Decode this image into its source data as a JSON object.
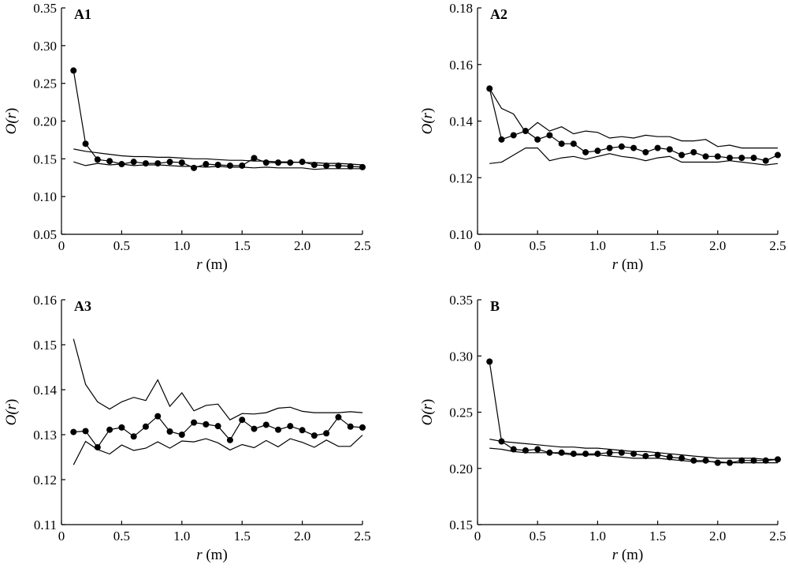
{
  "chart_data": [
    {
      "type": "line",
      "panel_label": "A1",
      "xlabel": {
        "italic": "r",
        "rest": " (m)"
      },
      "ylabel": {
        "pre": "O(",
        "italic": "r",
        "post": ")"
      },
      "xlim": [
        0,
        2.5
      ],
      "ylim": [
        0.05,
        0.35
      ],
      "xticks": [
        0,
        0.5,
        1.0,
        1.5,
        2.0,
        2.5
      ],
      "xtick_labels": [
        "0",
        "0.5",
        "1.0",
        "1.5",
        "2.0",
        "2.5"
      ],
      "yticks": [
        0.05,
        0.1,
        0.15,
        0.2,
        0.25,
        0.3,
        0.35
      ],
      "ytick_labels": [
        "0.05",
        "0.10",
        "0.15",
        "0.20",
        "0.25",
        "0.30",
        "0.35"
      ],
      "x": [
        0.1,
        0.2,
        0.3,
        0.4,
        0.5,
        0.6,
        0.7,
        0.8,
        0.9,
        1.0,
        1.1,
        1.2,
        1.3,
        1.4,
        1.5,
        1.6,
        1.7,
        1.8,
        1.9,
        2.0,
        2.1,
        2.2,
        2.3,
        2.4,
        2.5
      ],
      "series": [
        {
          "role": "observed",
          "values": [
            0.267,
            0.17,
            0.149,
            0.147,
            0.143,
            0.146,
            0.144,
            0.144,
            0.146,
            0.145,
            0.138,
            0.143,
            0.142,
            0.141,
            0.141,
            0.151,
            0.145,
            0.145,
            0.145,
            0.146,
            0.142,
            0.141,
            0.141,
            0.14,
            0.139
          ]
        },
        {
          "role": "envelope-upper",
          "values": [
            0.163,
            0.16,
            0.158,
            0.156,
            0.154,
            0.153,
            0.153,
            0.152,
            0.152,
            0.151,
            0.15,
            0.15,
            0.149,
            0.148,
            0.148,
            0.147,
            0.147,
            0.146,
            0.146,
            0.145,
            0.145,
            0.144,
            0.144,
            0.143,
            0.142
          ]
        },
        {
          "role": "envelope-lower",
          "values": [
            0.146,
            0.141,
            0.144,
            0.142,
            0.143,
            0.141,
            0.142,
            0.142,
            0.141,
            0.14,
            0.14,
            0.139,
            0.14,
            0.139,
            0.139,
            0.138,
            0.139,
            0.138,
            0.138,
            0.138,
            0.136,
            0.137,
            0.137,
            0.137,
            0.137
          ]
        }
      ]
    },
    {
      "type": "line",
      "panel_label": "A2",
      "xlabel": {
        "italic": "r",
        "rest": " (m)"
      },
      "ylabel": {
        "pre": "O(",
        "italic": "r",
        "post": ")"
      },
      "xlim": [
        0,
        2.5
      ],
      "ylim": [
        0.1,
        0.18
      ],
      "xticks": [
        0,
        0.5,
        1.0,
        1.5,
        2.0,
        2.5
      ],
      "xtick_labels": [
        "0",
        "0.5",
        "1.0",
        "1.5",
        "2.0",
        "2.5"
      ],
      "yticks": [
        0.1,
        0.12,
        0.14,
        0.16,
        0.18
      ],
      "ytick_labels": [
        "0.10",
        "0.12",
        "0.14",
        "0.16",
        "0.18"
      ],
      "x": [
        0.1,
        0.2,
        0.3,
        0.4,
        0.5,
        0.6,
        0.7,
        0.8,
        0.9,
        1.0,
        1.1,
        1.2,
        1.3,
        1.4,
        1.5,
        1.6,
        1.7,
        1.8,
        1.9,
        2.0,
        2.1,
        2.2,
        2.3,
        2.4,
        2.5
      ],
      "series": [
        {
          "role": "observed",
          "values": [
            0.1515,
            0.1335,
            0.135,
            0.1365,
            0.1335,
            0.135,
            0.132,
            0.132,
            0.129,
            0.1295,
            0.1305,
            0.131,
            0.1305,
            0.129,
            0.1305,
            0.13,
            0.128,
            0.129,
            0.1275,
            0.1275,
            0.127,
            0.127,
            0.127,
            0.126,
            0.128
          ]
        },
        {
          "role": "envelope-upper",
          "values": [
            0.1515,
            0.1445,
            0.1425,
            0.136,
            0.1395,
            0.1365,
            0.138,
            0.1355,
            0.1365,
            0.136,
            0.134,
            0.1345,
            0.134,
            0.135,
            0.1345,
            0.1345,
            0.133,
            0.133,
            0.1335,
            0.131,
            0.1315,
            0.1305,
            0.1305,
            0.1305,
            0.1305
          ]
        },
        {
          "role": "envelope-lower",
          "values": [
            0.125,
            0.1255,
            0.128,
            0.1305,
            0.1305,
            0.126,
            0.127,
            0.1275,
            0.1265,
            0.1275,
            0.1285,
            0.1275,
            0.127,
            0.126,
            0.127,
            0.1275,
            0.1255,
            0.1255,
            0.1255,
            0.1255,
            0.126,
            0.1255,
            0.125,
            0.1245,
            0.125
          ]
        }
      ]
    },
    {
      "type": "line",
      "panel_label": "A3",
      "xlabel": {
        "italic": "r",
        "rest": " (m)"
      },
      "ylabel": {
        "pre": "O(",
        "italic": "r",
        "post": ")"
      },
      "xlim": [
        0,
        2.5
      ],
      "ylim": [
        0.11,
        0.16
      ],
      "xticks": [
        0,
        0.5,
        1.0,
        1.5,
        2.0,
        2.5
      ],
      "xtick_labels": [
        "0",
        "0.5",
        "1.0",
        "1.5",
        "2.0",
        "2.5"
      ],
      "yticks": [
        0.11,
        0.12,
        0.13,
        0.14,
        0.15,
        0.16
      ],
      "ytick_labels": [
        "0.11",
        "0.12",
        "0.13",
        "0.14",
        "0.15",
        "0.16"
      ],
      "x": [
        0.1,
        0.2,
        0.3,
        0.4,
        0.5,
        0.6,
        0.7,
        0.8,
        0.9,
        1.0,
        1.1,
        1.2,
        1.3,
        1.4,
        1.5,
        1.6,
        1.7,
        1.8,
        1.9,
        2.0,
        2.1,
        2.2,
        2.3,
        2.4,
        2.5
      ],
      "series": [
        {
          "role": "observed",
          "values": [
            0.1306,
            0.1308,
            0.1272,
            0.1311,
            0.1316,
            0.1296,
            0.1318,
            0.1341,
            0.1307,
            0.13,
            0.1327,
            0.1323,
            0.1319,
            0.1288,
            0.1333,
            0.1313,
            0.1322,
            0.1311,
            0.1319,
            0.131,
            0.1298,
            0.1303,
            0.1339,
            0.1318,
            0.1316
          ]
        },
        {
          "role": "envelope-upper",
          "values": [
            0.1513,
            0.1412,
            0.1373,
            0.1357,
            0.1373,
            0.1383,
            0.1376,
            0.1422,
            0.1363,
            0.1393,
            0.1353,
            0.1365,
            0.1368,
            0.1333,
            0.1347,
            0.1346,
            0.1349,
            0.1359,
            0.1361,
            0.1352,
            0.1349,
            0.1349,
            0.1349,
            0.1351,
            0.1349
          ]
        },
        {
          "role": "envelope-lower",
          "values": [
            0.1233,
            0.1285,
            0.1267,
            0.1257,
            0.1277,
            0.1265,
            0.127,
            0.1284,
            0.127,
            0.1286,
            0.1284,
            0.1291,
            0.1282,
            0.1266,
            0.1278,
            0.1271,
            0.1287,
            0.1273,
            0.1291,
            0.1283,
            0.1272,
            0.1288,
            0.1274,
            0.1274,
            0.1299
          ]
        }
      ]
    },
    {
      "type": "line",
      "panel_label": "B",
      "xlabel": {
        "italic": "r",
        "rest": " (m)"
      },
      "ylabel": {
        "pre": "O(",
        "italic": "r",
        "post": ")"
      },
      "xlim": [
        0,
        2.5
      ],
      "ylim": [
        0.15,
        0.35
      ],
      "xticks": [
        0,
        0.5,
        1.0,
        1.5,
        2.0,
        2.5
      ],
      "xtick_labels": [
        "0",
        "0.5",
        "1.0",
        "1.5",
        "2.0",
        "2.5"
      ],
      "yticks": [
        0.15,
        0.2,
        0.25,
        0.3,
        0.35
      ],
      "ytick_labels": [
        "0.15",
        "0.20",
        "0.25",
        "0.30",
        "0.35"
      ],
      "x": [
        0.1,
        0.2,
        0.3,
        0.4,
        0.5,
        0.6,
        0.7,
        0.8,
        0.9,
        1.0,
        1.1,
        1.2,
        1.3,
        1.4,
        1.5,
        1.6,
        1.7,
        1.8,
        1.9,
        2.0,
        2.1,
        2.2,
        2.3,
        2.4,
        2.5
      ],
      "series": [
        {
          "role": "observed",
          "values": [
            0.295,
            0.224,
            0.217,
            0.216,
            0.217,
            0.214,
            0.214,
            0.213,
            0.213,
            0.213,
            0.214,
            0.214,
            0.213,
            0.211,
            0.212,
            0.21,
            0.209,
            0.207,
            0.207,
            0.205,
            0.205,
            0.207,
            0.207,
            0.207,
            0.208
          ]
        },
        {
          "role": "envelope-upper",
          "values": [
            0.226,
            0.224,
            0.223,
            0.222,
            0.221,
            0.22,
            0.219,
            0.219,
            0.218,
            0.218,
            0.217,
            0.216,
            0.215,
            0.215,
            0.214,
            0.213,
            0.212,
            0.211,
            0.21,
            0.209,
            0.209,
            0.209,
            0.209,
            0.208,
            0.208
          ]
        },
        {
          "role": "envelope-lower",
          "values": [
            0.218,
            0.217,
            0.215,
            0.214,
            0.214,
            0.214,
            0.213,
            0.212,
            0.212,
            0.212,
            0.211,
            0.21,
            0.209,
            0.209,
            0.209,
            0.208,
            0.207,
            0.206,
            0.206,
            0.206,
            0.205,
            0.205,
            0.205,
            0.205,
            0.205
          ]
        }
      ]
    }
  ]
}
